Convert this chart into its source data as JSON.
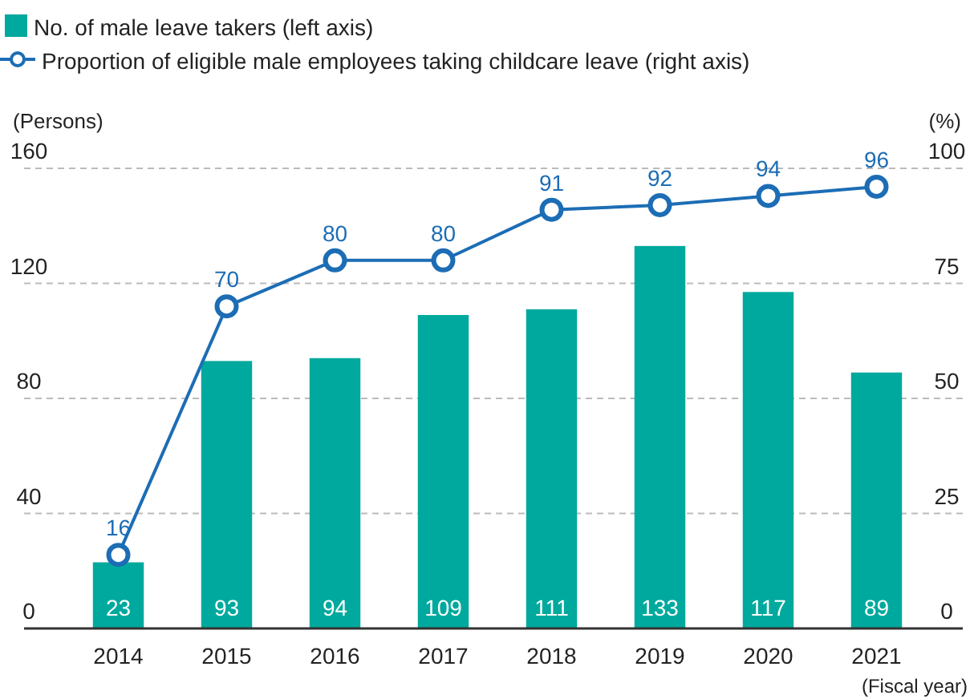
{
  "chart_data": {
    "type": "bar",
    "categories": [
      "2014",
      "2015",
      "2016",
      "2017",
      "2018",
      "2019",
      "2020",
      "2021"
    ],
    "series": [
      {
        "name": "No. of male leave takers (left axis)",
        "color": "#00a99d",
        "values": [
          23,
          93,
          94,
          109,
          111,
          133,
          117,
          89
        ]
      },
      {
        "name": "Proportion of eligible male employees taking childcare leave (right axis)",
        "type": "line",
        "axis": "y2",
        "color": "#1c6db5",
        "values": [
          16,
          70,
          80,
          80,
          91,
          92,
          94,
          96
        ]
      }
    ],
    "ylabel": "(Persons)",
    "y2label": "(%)",
    "xlabel": "(Fiscal year)",
    "ylim": [
      0,
      160
    ],
    "yticks": [
      0,
      40,
      80,
      120,
      160
    ],
    "y2lim": [
      0,
      100
    ],
    "y2ticks": [
      0,
      25,
      50,
      75,
      100
    ],
    "grid": "y",
    "legend": "top left",
    "marker": "circle",
    "data_labels": true
  }
}
